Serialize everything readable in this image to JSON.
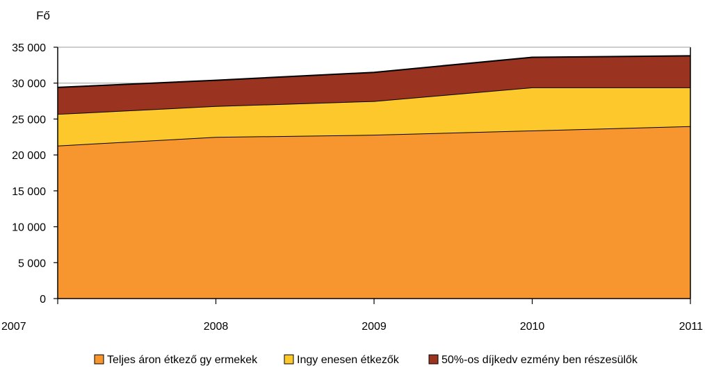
{
  "chart_data": {
    "type": "area",
    "stacked": true,
    "title": "",
    "xlabel": "",
    "ylabel": "Fő",
    "categories": [
      "2007",
      "2008",
      "2009",
      "2010",
      "2011"
    ],
    "ylim": [
      0,
      35000
    ],
    "yticks": [
      0,
      5000,
      10000,
      15000,
      20000,
      25000,
      30000,
      35000
    ],
    "ytick_labels": [
      "0",
      "5 000",
      "10 000",
      "15 000",
      "20 000",
      "25 000",
      "30 000",
      "35 000"
    ],
    "grid": "horizontal lines at 30 000 and 35 000",
    "legend_position": "bottom",
    "series": [
      {
        "name": "Teljes áron étkező gy ermekek",
        "color": "#F7962F",
        "values": [
          21300,
          22500,
          22800,
          23400,
          24000
        ]
      },
      {
        "name": "Ingy enesen étkezők",
        "color": "#FCC82C",
        "values": [
          4400,
          4300,
          4700,
          6000,
          5400
        ]
      },
      {
        "name": "50%-os díjkedv ezmény ben részesülők",
        "color": "#9A3320",
        "values": [
          3700,
          3600,
          4000,
          4200,
          4400
        ]
      }
    ]
  }
}
